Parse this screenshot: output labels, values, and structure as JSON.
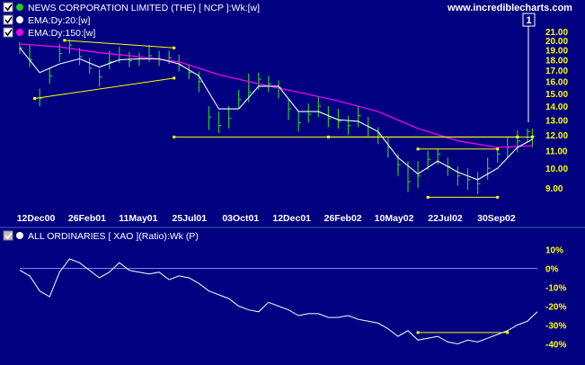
{
  "header": {
    "series": [
      {
        "label": "NEWS CORPORATION LIMITED (THE) [ NCP ]:Wk:[w]",
        "color": "#22cc22",
        "checked": true
      },
      {
        "label": "EMA:Dy:20:[w]",
        "color": "#ffffff",
        "checked": true
      },
      {
        "label": "EMA:Dy:150:[w]",
        "color": "#ee00ee",
        "checked": true
      }
    ],
    "website": "www.incrediblecharts.com",
    "marker": "1"
  },
  "lower_header": {
    "label": "ALL ORDINARIES [ XAO ](Ratio):Wk (P)",
    "checked": true
  },
  "colors": {
    "background": "#000080",
    "axis_text": "#ffff00",
    "price_bar": "#22cc22",
    "ema_20": "#ffffff",
    "ema_150": "#ee00ee",
    "trendline": "#ffff00",
    "ratio_line": "#ffffff"
  },
  "chart_data": [
    {
      "type": "line",
      "title": "NEWS CORPORATION LIMITED (THE) [ NCP ]:Wk:[w]",
      "x_tick_labels": [
        "12Dec00",
        "26Feb01",
        "11May01",
        "25Jul01",
        "03Oct01",
        "12Dec01",
        "26Feb02",
        "10May02",
        "22Jul02",
        "30Sep02"
      ],
      "y_tick_labels": [
        "21.00",
        "20.00",
        "19.00",
        "18.00",
        "17.00",
        "16.00",
        "15.00",
        "14.00",
        "13.00",
        "12.00",
        "11.00",
        "10.00",
        "9.00"
      ],
      "y_scale": "log",
      "ylim": [
        8.2,
        21.5
      ],
      "x_range_weeks": [
        0,
        104
      ],
      "series": [
        {
          "name": "NEWS CORPORATION LIMITED (THE) [ NCP ]:Wk:[w]",
          "type": "ohlc",
          "x": [
            0,
            2,
            4,
            6,
            8,
            10,
            12,
            14,
            16,
            18,
            20,
            22,
            24,
            26,
            28,
            30,
            32,
            34,
            36,
            38,
            40,
            42,
            44,
            46,
            48,
            50,
            52,
            54,
            56,
            58,
            60,
            62,
            64,
            66,
            68,
            70,
            72,
            74,
            76,
            78,
            80,
            82,
            84,
            86,
            88,
            90,
            92,
            94,
            96,
            98,
            100,
            102,
            103
          ],
          "close": [
            19.2,
            18.0,
            14.6,
            16.5,
            18.6,
            19.5,
            18.3,
            17.2,
            16.4,
            17.8,
            18.5,
            17.9,
            18.1,
            18.4,
            18.0,
            18.2,
            17.5,
            16.8,
            16.0,
            13.2,
            12.6,
            13.1,
            14.5,
            15.1,
            16.2,
            15.8,
            15.5,
            13.8,
            12.8,
            13.4,
            14.0,
            13.1,
            12.9,
            12.6,
            13.3,
            12.5,
            12.0,
            11.2,
            10.2,
            9.3,
            9.6,
            10.5,
            10.8,
            10.1,
            9.6,
            9.4,
            9.2,
            10.0,
            10.8,
            11.2,
            11.6,
            12.2,
            11.9
          ],
          "high": [
            19.8,
            19.5,
            15.4,
            17.2,
            19.6,
            20.1,
            19.2,
            18.2,
            17.1,
            18.9,
            19.3,
            18.8,
            18.7,
            19.5,
            18.9,
            18.9,
            18.5,
            17.6,
            16.9,
            14.0,
            13.6,
            14.0,
            15.3,
            16.7,
            16.8,
            16.5,
            16.1,
            14.6,
            13.6,
            14.2,
            14.8,
            14.0,
            13.8,
            13.3,
            14.0,
            13.2,
            12.5,
            11.8,
            10.8,
            10.4,
            10.4,
            11.0,
            11.1,
            10.6,
            10.1,
            10.0,
            9.8,
            10.6,
            11.2,
            11.9,
            12.3,
            12.4,
            12.4
          ],
          "low": [
            18.6,
            17.3,
            14.0,
            15.8,
            17.8,
            18.6,
            17.5,
            16.7,
            15.6,
            17.1,
            17.7,
            17.3,
            17.4,
            17.8,
            17.4,
            17.6,
            16.9,
            16.2,
            15.1,
            12.3,
            12.1,
            12.4,
            13.8,
            14.3,
            15.3,
            15.1,
            14.6,
            13.0,
            12.2,
            12.8,
            13.2,
            12.5,
            12.4,
            12.0,
            12.5,
            11.9,
            11.4,
            10.6,
            9.6,
            8.8,
            9.0,
            9.9,
            10.2,
            9.6,
            9.1,
            8.9,
            8.7,
            9.4,
            10.3,
            10.6,
            10.9,
            11.5,
            11.2
          ]
        },
        {
          "name": "EMA:Dy:20:[w]",
          "type": "line",
          "x": [
            0,
            4,
            8,
            12,
            16,
            20,
            24,
            28,
            32,
            36,
            40,
            44,
            48,
            52,
            56,
            60,
            64,
            68,
            72,
            76,
            80,
            84,
            88,
            92,
            96,
            100,
            103
          ],
          "values": [
            19.2,
            16.8,
            17.6,
            18.1,
            17.3,
            18.0,
            18.1,
            18.1,
            17.6,
            16.5,
            13.8,
            13.8,
            15.6,
            15.6,
            13.6,
            13.6,
            13.0,
            12.9,
            12.2,
            10.6,
            9.7,
            10.4,
            9.8,
            9.4,
            10.0,
            11.2,
            11.7
          ]
        },
        {
          "name": "EMA:Dy:150:[w]",
          "type": "line",
          "x": [
            0,
            8,
            16,
            24,
            32,
            40,
            48,
            56,
            64,
            72,
            80,
            88,
            96,
            103
          ],
          "values": [
            19.6,
            19.3,
            18.7,
            18.3,
            17.8,
            16.6,
            15.8,
            15.1,
            14.4,
            13.6,
            12.4,
            11.6,
            11.2,
            11.3
          ]
        },
        {
          "name": "",
          "type": "trendlines",
          "lines": [
            {
              "x": [
                3,
                31
              ],
              "values": [
                14.6,
                16.3
              ]
            },
            {
              "x": [
                9,
                31
              ],
              "values": [
                20.0,
                19.2
              ]
            },
            {
              "x": [
                31,
                103
              ],
              "values": [
                11.85,
                11.85
              ]
            },
            {
              "x": [
                62,
                100
              ],
              "values": [
                11.85,
                11.85
              ]
            },
            {
              "x": [
                80,
                96
              ],
              "values": [
                11.1,
                11.1
              ]
            },
            {
              "x": [
                82,
                96
              ],
              "values": [
                8.55,
                8.55
              ]
            }
          ]
        }
      ]
    },
    {
      "type": "line",
      "title": "ALL ORDINARIES [ XAO ](Ratio):Wk (P)",
      "y_tick_labels": [
        "10%",
        "0%",
        "-10%",
        "-20%",
        "-30%",
        "-40%"
      ],
      "ylim": [
        -45,
        15
      ],
      "x_range_weeks": [
        0,
        104
      ],
      "series": [
        {
          "name": "ALL ORDINARIES [ XAO ](Ratio):Wk (P)",
          "x": [
            0,
            2,
            4,
            6,
            8,
            10,
            12,
            14,
            16,
            18,
            20,
            22,
            24,
            26,
            28,
            30,
            32,
            34,
            36,
            38,
            40,
            42,
            44,
            46,
            48,
            50,
            52,
            54,
            56,
            58,
            60,
            62,
            64,
            66,
            68,
            70,
            72,
            74,
            76,
            78,
            80,
            82,
            84,
            86,
            88,
            90,
            92,
            94,
            96,
            98,
            100,
            102,
            104
          ],
          "values": [
            -1,
            -4,
            -12,
            -15,
            -2,
            5,
            3,
            -1,
            -5,
            -2,
            3,
            -1,
            -2,
            -3,
            -2,
            -6,
            -4,
            -5,
            -8,
            -12,
            -14,
            -16,
            -20,
            -22,
            -23,
            -18,
            -20,
            -22,
            -25,
            -24,
            -24,
            -26,
            -26,
            -25,
            -27,
            -28,
            -29,
            -32,
            -36,
            -33,
            -38,
            -37,
            -36,
            -39,
            -40,
            -38,
            -39,
            -37,
            -35,
            -33,
            -30,
            -28,
            -23
          ]
        },
        {
          "name": "",
          "type": "reference",
          "x": [
            0,
            104
          ],
          "values": [
            0,
            0
          ]
        },
        {
          "name": "",
          "type": "trendline",
          "x": [
            80,
            98
          ],
          "values": [
            -34,
            -34
          ]
        }
      ]
    }
  ]
}
